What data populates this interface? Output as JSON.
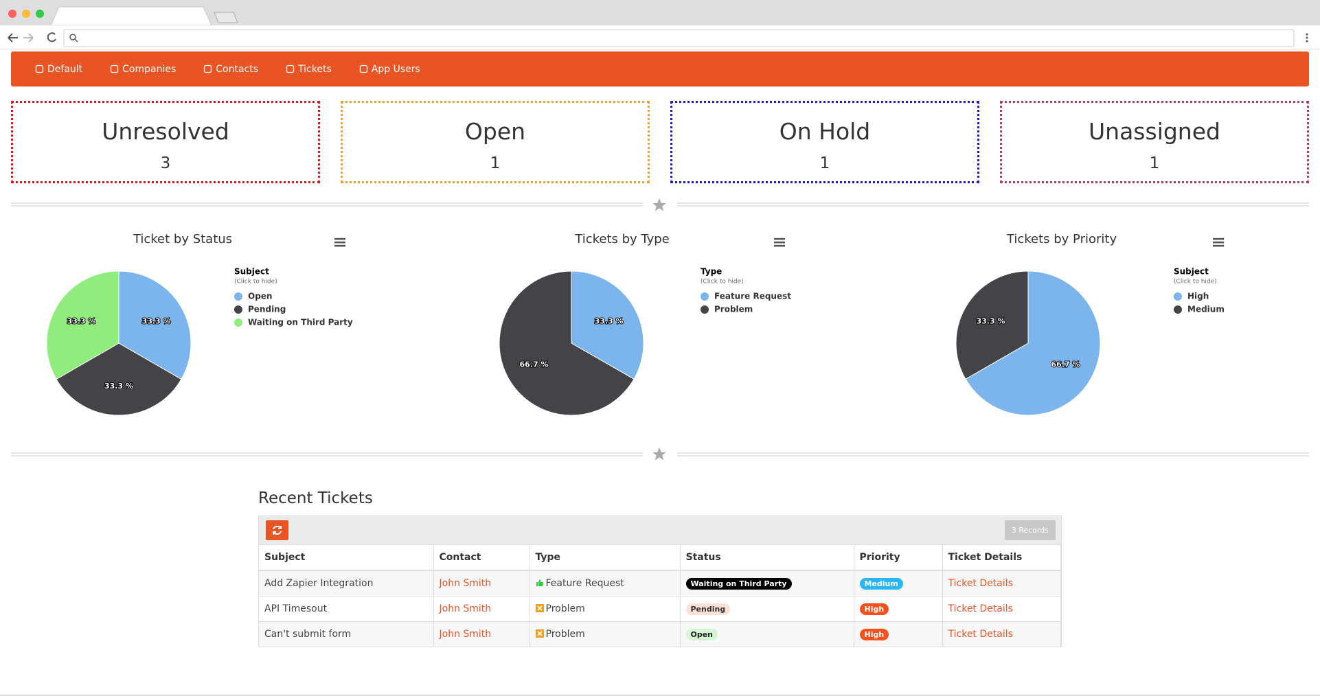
{
  "nav": [
    "Default",
    "Companies",
    "Contacts",
    "Tickets",
    "App Users"
  ],
  "cards": [
    {
      "title": "Unresolved",
      "value": 3
    },
    {
      "title": "Open",
      "value": 1
    },
    {
      "title": "On Hold",
      "value": 1
    },
    {
      "title": "Unassigned",
      "value": 1
    }
  ],
  "chart_data": [
    {
      "type": "pie",
      "title": "Ticket by Status",
      "legend_title": "Subject",
      "legend_note": "(Click to hide)",
      "categories": [
        "Open",
        "Pending",
        "Waiting on Third Party"
      ],
      "values": [
        33.3,
        33.3,
        33.3
      ],
      "value_labels": [
        "33.3 %",
        "33.3 %",
        "33.3 %"
      ],
      "colors": [
        "#7cb5ec",
        "#434348",
        "#90ed7d"
      ]
    },
    {
      "type": "pie",
      "title": "Tickets by Type",
      "legend_title": "Type",
      "legend_note": "(Click to hide)",
      "categories": [
        "Feature Request",
        "Problem"
      ],
      "values": [
        33.3,
        66.7
      ],
      "value_labels": [
        "33.3 %",
        "66.7 %"
      ],
      "colors": [
        "#7cb5ec",
        "#434348"
      ]
    },
    {
      "type": "pie",
      "title": "Tickets by Priority",
      "legend_title": "Subject",
      "legend_note": "(Click to hide)",
      "categories": [
        "High",
        "Medium"
      ],
      "values": [
        66.7,
        33.3
      ],
      "value_labels": [
        "66.7 %",
        "33.3 %"
      ],
      "colors": [
        "#7cb5ec",
        "#434348"
      ]
    }
  ],
  "recent_tickets": {
    "title": "Recent Tickets",
    "records": "3 Records",
    "columns": [
      "Subject",
      "Contact",
      "Type",
      "Status",
      "Priority",
      "Ticket Details"
    ],
    "rows": [
      [
        "Add Zapier Integration",
        "John Smith",
        "Feature Request",
        "Waiting on Third Party",
        "Medium",
        "Ticket Details"
      ],
      [
        "API Timesout",
        "John Smith",
        "Problem",
        "Pending",
        "High",
        "Ticket Details"
      ],
      [
        "Can't submit form",
        "John Smith",
        "Problem",
        "Open",
        "High",
        "Ticket Details"
      ]
    ]
  }
}
